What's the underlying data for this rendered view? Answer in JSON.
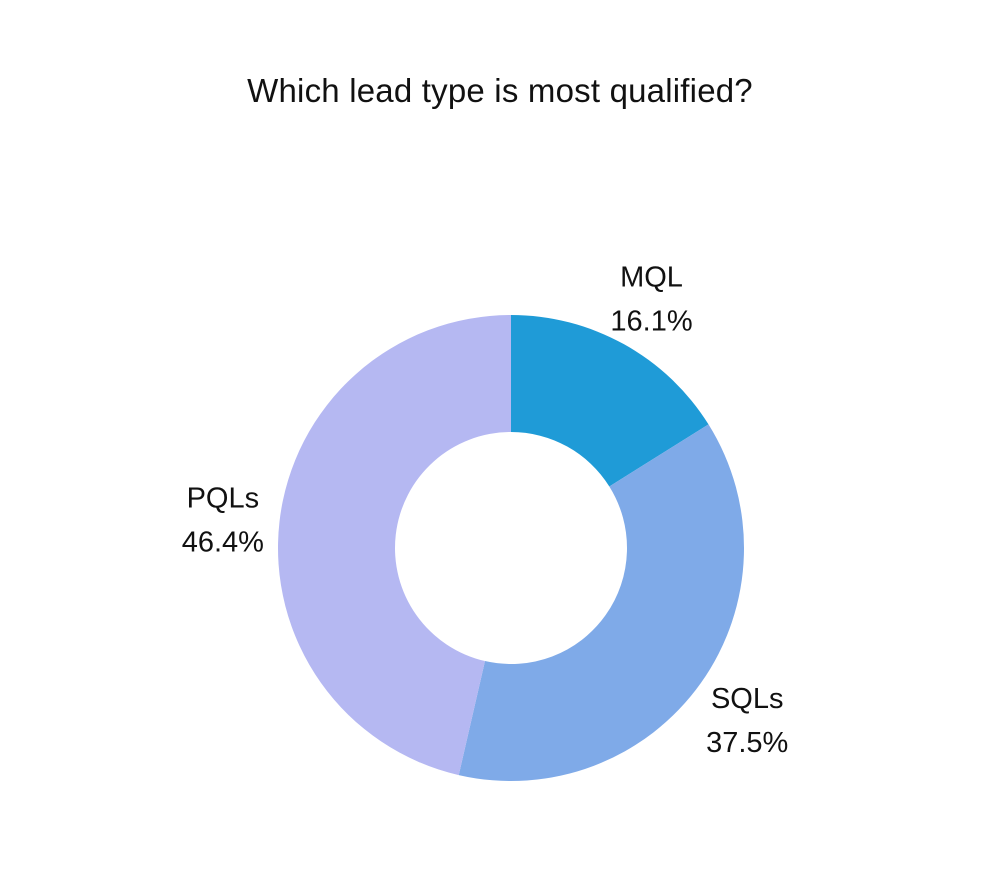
{
  "chart_data": {
    "type": "pie",
    "variant": "donut",
    "title": "Which lead type is most qualified?",
    "slices": [
      {
        "label": "MQL",
        "value": 16.1,
        "display": "16.1%",
        "color": "#1f9bd7"
      },
      {
        "label": "SQLs",
        "value": 37.5,
        "display": "37.5%",
        "color": "#7faae8"
      },
      {
        "label": "PQLs",
        "value": 46.4,
        "display": "46.4%",
        "color": "#b5b8f2"
      }
    ],
    "start": "top",
    "direction": "clockwise",
    "legend": "none"
  }
}
